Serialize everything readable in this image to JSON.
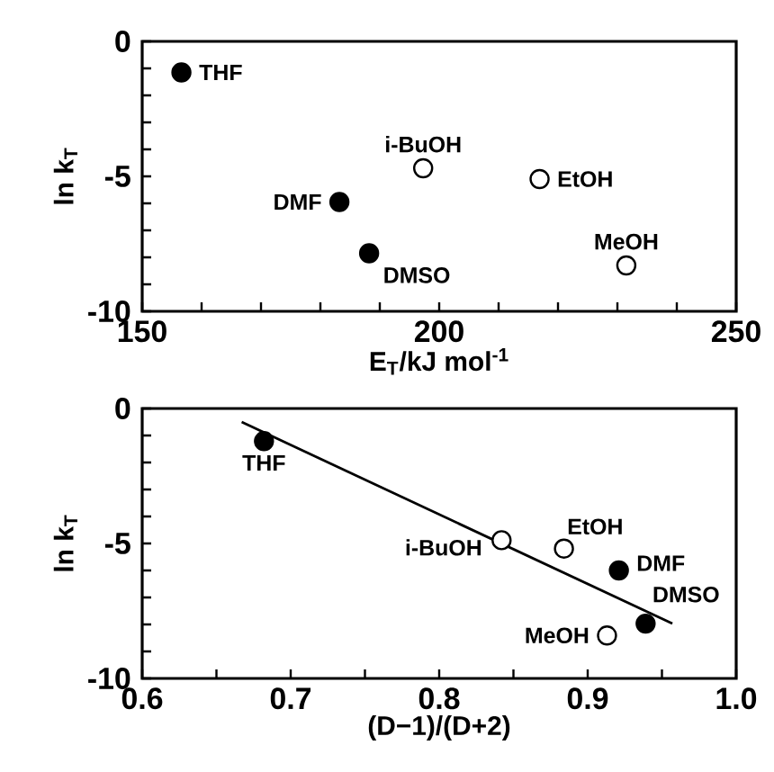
{
  "chart_data": [
    {
      "type": "scatter",
      "xlabel": "E$_{T}$/kJ mol$^{-1}$",
      "ylabel": "ln k$_{T}$",
      "marker": "circle",
      "series": [
        {
          "color": "#000000",
          "x": [
            156.6,
            183.2,
            188.2
          ],
          "values": [
            -1.15,
            -5.95,
            -7.85
          ]
        },
        {
          "color": "#ffffff",
          "x": [
            197.3,
            216.9,
            231.5
          ],
          "values": [
            -4.7,
            -5.1,
            -8.3
          ]
        }
      ],
      "annotations": [
        {
          "text": "THF",
          "x": 156.6,
          "y": -1.15
        },
        {
          "text": "DMF",
          "x": 183.2,
          "y": -5.95
        },
        {
          "text": "DMSO",
          "x": 188.2,
          "y": -7.85
        },
        {
          "text": "i-BuOH",
          "x": 197.3,
          "y": -4.7
        },
        {
          "text": "EtOH",
          "x": 216.9,
          "y": -5.1
        },
        {
          "text": "MeOH",
          "x": 231.5,
          "y": -8.3
        }
      ],
      "xlim": [
        150,
        250
      ],
      "ylim": [
        -10,
        0
      ],
      "xticks": [
        150,
        {
          "value": 160,
          "label": null
        },
        {
          "value": 170,
          "label": null
        },
        {
          "value": 180,
          "label": null
        },
        {
          "value": 190,
          "label": null
        },
        200,
        {
          "value": 210,
          "label": null
        },
        {
          "value": 220,
          "label": null
        },
        {
          "value": 230,
          "label": null
        },
        {
          "value": 240,
          "label": null
        },
        250
      ],
      "yticks": [
        -10,
        {
          "value": -9,
          "label": null
        },
        {
          "value": -8,
          "label": null
        },
        {
          "value": -7,
          "label": null
        },
        {
          "value": -6,
          "label": null
        },
        -5,
        {
          "value": -4,
          "label": null
        },
        {
          "value": -3,
          "label": null
        },
        {
          "value": -2,
          "label": null
        },
        {
          "value": -1,
          "label": null
        },
        0
      ]
    },
    {
      "type": "scatter",
      "xlabel": "(D−1)/(D+2)",
      "ylabel": "ln k$_{T}$",
      "marker": "circle",
      "series": [
        {
          "type": "line",
          "marker": "none",
          "color": "#000000",
          "x": [
            0.667,
            0.957
          ],
          "values": [
            -0.5,
            -7.97
          ]
        },
        {
          "color": "#000000",
          "x": [
            0.682,
            0.921,
            0.939
          ],
          "values": [
            -1.21,
            -6.0,
            -7.97
          ]
        },
        {
          "color": "#ffffff",
          "x": [
            0.842,
            0.884,
            0.913
          ],
          "values": [
            -4.88,
            -5.19,
            -8.41
          ]
        }
      ],
      "annotations": [
        {
          "text": "THF",
          "x": 0.682,
          "y": -1.21
        },
        {
          "text": "i-BuOH",
          "x": 0.842,
          "y": -4.88
        },
        {
          "text": "EtOH",
          "x": 0.884,
          "y": -5.19
        },
        {
          "text": "DMF",
          "x": 0.921,
          "y": -6.0
        },
        {
          "text": "DMSO",
          "x": 0.939,
          "y": -7.97
        },
        {
          "text": "MeOH",
          "x": 0.913,
          "y": -8.41
        }
      ],
      "xlim": [
        0.6,
        1.0
      ],
      "ylim": [
        -10,
        0
      ],
      "xticks": [
        {
          "value": 0.6,
          "label": "0.6"
        },
        {
          "value": 0.65,
          "label": null
        },
        0.7,
        {
          "value": 0.75,
          "label": null
        },
        0.8,
        {
          "value": 0.85,
          "label": null
        },
        0.9,
        {
          "value": 0.95,
          "label": null
        },
        {
          "value": 1.0,
          "label": "1.0"
        }
      ],
      "yticks": [
        -10,
        {
          "value": -9,
          "label": null
        },
        {
          "value": -8,
          "label": null
        },
        {
          "value": -7,
          "label": null
        },
        {
          "value": -6,
          "label": null
        },
        -5,
        {
          "value": -4,
          "label": null
        },
        {
          "value": -3,
          "label": null
        },
        {
          "value": -2,
          "label": null
        },
        {
          "value": -1,
          "label": null
        },
        0
      ]
    }
  ]
}
